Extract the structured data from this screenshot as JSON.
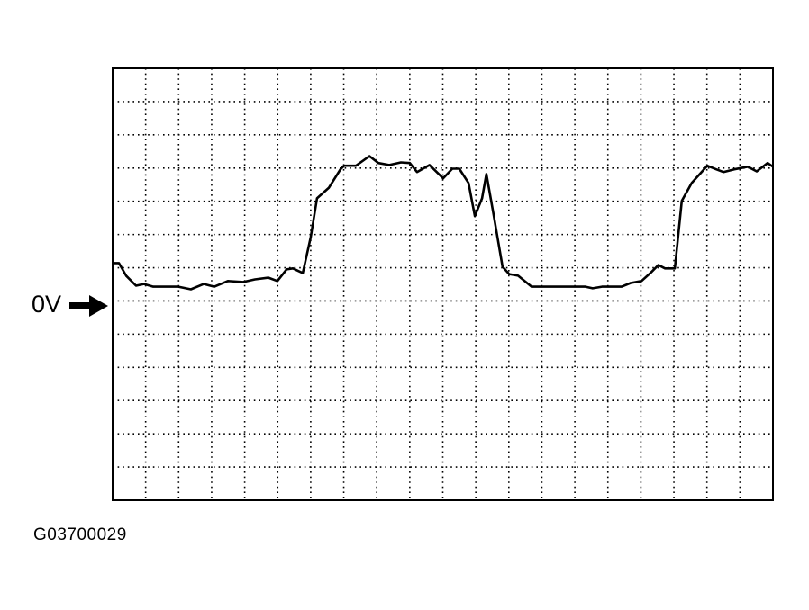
{
  "chart_data": {
    "type": "line",
    "title": "",
    "xlabel": "",
    "ylabel": "",
    "x_divisions": 20,
    "y_divisions": 13,
    "xlim": [
      0,
      20
    ],
    "ylim": [
      -6,
      7
    ],
    "grid": "dotted",
    "reference_marker": {
      "label": "0V",
      "y": 0,
      "icon": "arrow-right-icon"
    },
    "series": [
      {
        "color": "#000000",
        "x": [
          0.03,
          0.19,
          0.41,
          0.71,
          0.95,
          1.23,
          1.99,
          2.37,
          2.76,
          3.08,
          3.49,
          3.96,
          4.31,
          4.72,
          4.99,
          5.27,
          5.46,
          5.76,
          6.0,
          6.19,
          6.55,
          6.9,
          7.01,
          7.37,
          7.78,
          8.05,
          8.38,
          8.73,
          9.0,
          9.22,
          9.6,
          10.01,
          10.29,
          10.5,
          10.78,
          10.97,
          11.19,
          11.32,
          11.54,
          11.81,
          12.01,
          12.28,
          12.69,
          14.32,
          14.54,
          14.82,
          15.42,
          15.69,
          16.02,
          16.29,
          16.53,
          16.73,
          17.03,
          17.24,
          17.54,
          18.01,
          18.28,
          18.5,
          18.83,
          19.24,
          19.51,
          19.84,
          20.0
        ],
        "y": [
          1.14,
          1.14,
          0.76,
          0.46,
          0.51,
          0.43,
          0.43,
          0.35,
          0.51,
          0.43,
          0.6,
          0.57,
          0.65,
          0.7,
          0.6,
          0.95,
          0.98,
          0.84,
          1.92,
          3.09,
          3.41,
          3.96,
          4.07,
          4.07,
          4.36,
          4.15,
          4.09,
          4.17,
          4.15,
          3.88,
          4.09,
          3.69,
          3.98,
          3.98,
          3.55,
          2.55,
          3.09,
          3.82,
          2.6,
          1.03,
          0.81,
          0.76,
          0.43,
          0.43,
          0.38,
          0.43,
          0.43,
          0.54,
          0.6,
          0.84,
          1.08,
          0.98,
          0.98,
          3.01,
          3.55,
          4.07,
          3.96,
          3.88,
          3.96,
          4.04,
          3.9,
          4.15,
          4.04
        ]
      }
    ]
  },
  "figure_id": "G03700029"
}
